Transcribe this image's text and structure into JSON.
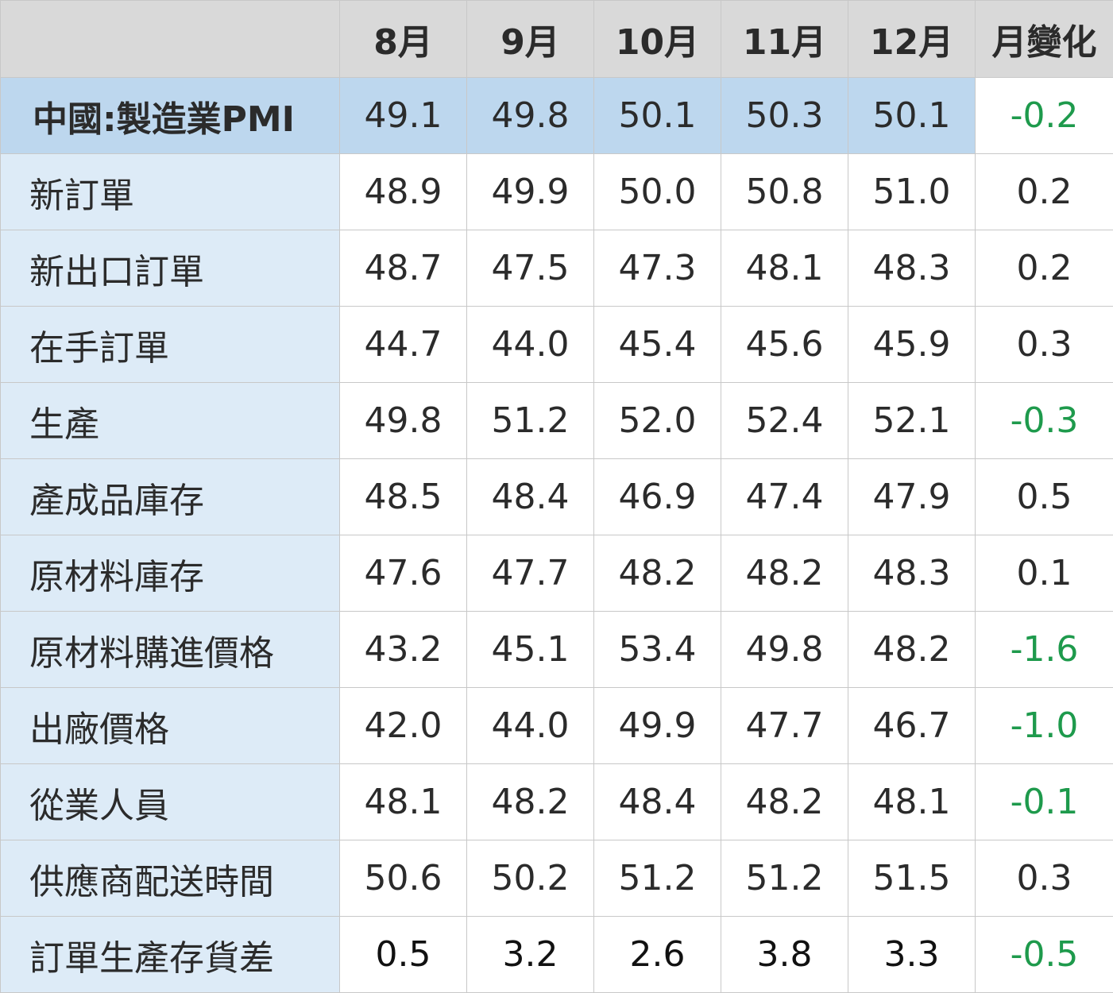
{
  "chart_data": {
    "type": "table",
    "columns": [
      "",
      "8月",
      "9月",
      "10月",
      "11月",
      "12月",
      "月變化"
    ],
    "rows": [
      {
        "label": "中國:製造業PMI",
        "values": [
          "49.1",
          "49.8",
          "50.1",
          "50.3",
          "50.1"
        ],
        "change": "-0.2"
      },
      {
        "label": "新訂單",
        "values": [
          "48.9",
          "49.9",
          "50.0",
          "50.8",
          "51.0"
        ],
        "change": "0.2"
      },
      {
        "label": "新出口訂單",
        "values": [
          "48.7",
          "47.5",
          "47.3",
          "48.1",
          "48.3"
        ],
        "change": "0.2"
      },
      {
        "label": "在手訂單",
        "values": [
          "44.7",
          "44.0",
          "45.4",
          "45.6",
          "45.9"
        ],
        "change": "0.3"
      },
      {
        "label": "生產",
        "values": [
          "49.8",
          "51.2",
          "52.0",
          "52.4",
          "52.1"
        ],
        "change": "-0.3"
      },
      {
        "label": "產成品庫存",
        "values": [
          "48.5",
          "48.4",
          "46.9",
          "47.4",
          "47.9"
        ],
        "change": "0.5"
      },
      {
        "label": "原材料庫存",
        "values": [
          "47.6",
          "47.7",
          "48.2",
          "48.2",
          "48.3"
        ],
        "change": "0.1"
      },
      {
        "label": "原材料購進價格",
        "values": [
          "43.2",
          "45.1",
          "53.4",
          "49.8",
          "48.2"
        ],
        "change": "-1.6"
      },
      {
        "label": "出廠價格",
        "values": [
          "42.0",
          "44.0",
          "49.9",
          "47.7",
          "46.7"
        ],
        "change": "-1.0"
      },
      {
        "label": "從業人員",
        "values": [
          "48.1",
          "48.2",
          "48.4",
          "48.2",
          "48.1"
        ],
        "change": "-0.1"
      },
      {
        "label": "供應商配送時間",
        "values": [
          "50.6",
          "50.2",
          "51.2",
          "51.2",
          "51.5"
        ],
        "change": "0.3"
      },
      {
        "label": "訂單生產存貨差",
        "values": [
          "0.5",
          "3.2",
          "2.6",
          "3.8",
          "3.3"
        ],
        "change": "-0.5"
      }
    ],
    "colors": {
      "header_bg": "#d9d9d9",
      "label_bg": "#ddebf7",
      "highlight_bg": "#bdd7ee",
      "negative": "#1e9a4c",
      "text": "#2b2b2b"
    }
  }
}
